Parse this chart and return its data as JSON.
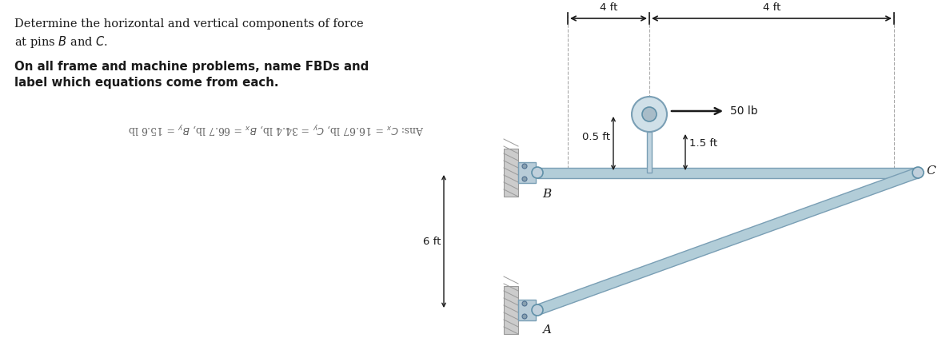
{
  "title_line1": "Determine the horizontal and vertical components of force",
  "title_line2": "at pins $B$ and $C$.",
  "bold_line1": "On all frame and machine problems, name FBDs and",
  "bold_line2": "label which equations come from each.",
  "ans_line": "Ans: $C_x$ = 16.67 lb, $C_y$ = 34.4 lb, $B_x$ = 66.7 lb, $B_y$ = 15.6 lb",
  "dim_4ft_left": "4 ft",
  "dim_4ft_right": "4 ft",
  "dim_05ft": "0.5 ft",
  "dim_15ft": "1.5 ft",
  "dim_6ft": "6 ft",
  "force_label": "50 lb",
  "label_B": "B",
  "label_C": "C",
  "label_A": "A",
  "beam_color": "#b2cdd8",
  "beam_edge": "#7a9fb5",
  "wall_color": "#cccccc",
  "wall_hatch_color": "#999999",
  "bracket_color": "#b8ccd8",
  "pin_color": "#c0d0dc",
  "dim_color": "#1a1a1a",
  "text_color": "#1a1a1a",
  "ans_color": "#666666"
}
